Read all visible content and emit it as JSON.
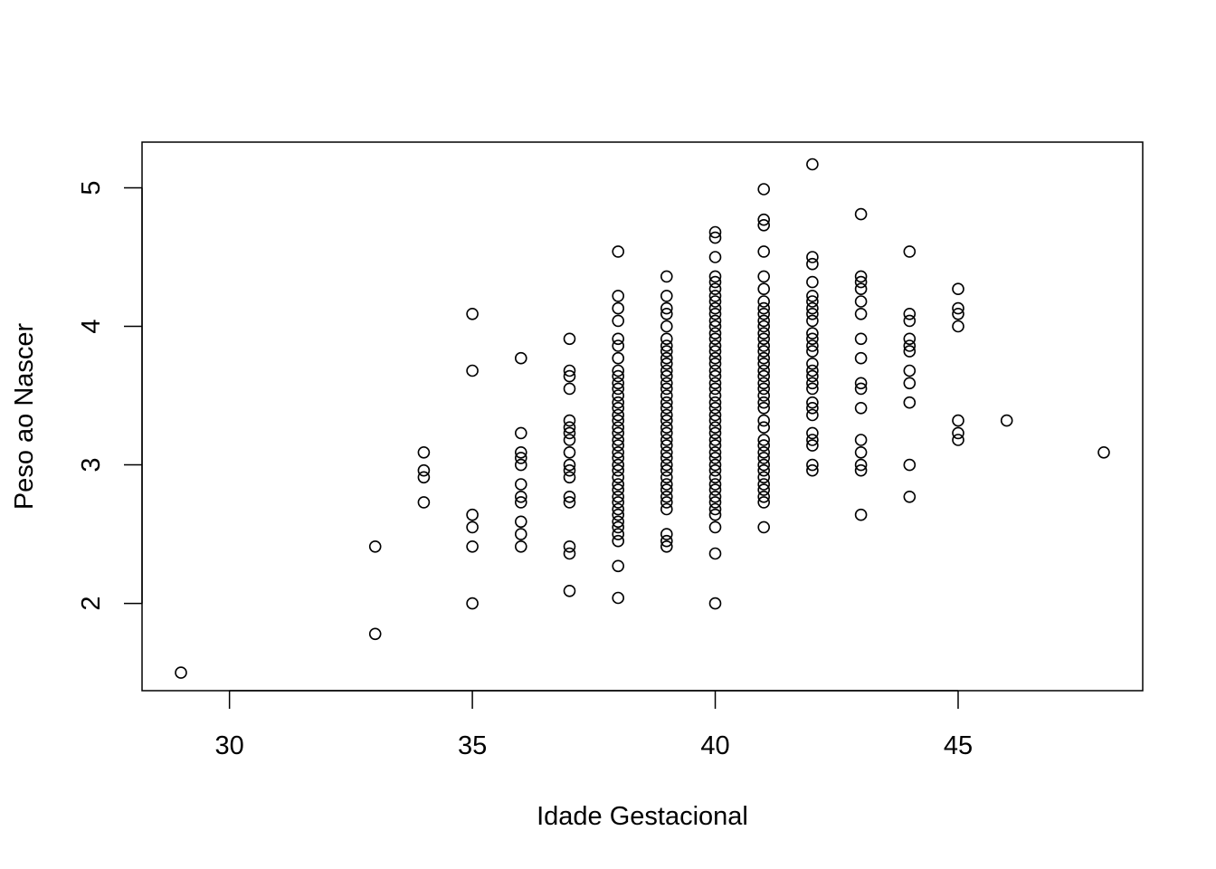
{
  "chart_data": {
    "type": "scatter",
    "title": "",
    "xlabel": "Idade Gestacional",
    "ylabel": "Peso ao Nascer",
    "xlim": [
      28.2,
      48.8
    ],
    "ylim": [
      1.37,
      5.33
    ],
    "x_ticks": [
      30,
      35,
      40,
      45
    ],
    "y_ticks": [
      2,
      3,
      4,
      5
    ],
    "x_tick_labels": [
      "30",
      "35",
      "40",
      "45"
    ],
    "y_tick_labels": [
      "2",
      "3",
      "4",
      "5"
    ],
    "grid": false,
    "legend": "none",
    "marker": "open-circle",
    "marker_color": "#000000",
    "series": [
      {
        "points": [
          [
            29,
            1.5
          ],
          [
            33,
            2.41
          ],
          [
            33,
            1.78
          ],
          [
            34,
            3.09
          ],
          [
            34,
            2.96
          ],
          [
            34,
            2.91
          ],
          [
            34,
            2.73
          ],
          [
            35,
            4.09
          ],
          [
            35,
            3.68
          ],
          [
            35,
            2.64
          ],
          [
            35,
            2.55
          ],
          [
            35,
            2.41
          ],
          [
            35,
            2.0
          ],
          [
            36,
            3.77
          ],
          [
            36,
            3.23
          ],
          [
            36,
            3.09
          ],
          [
            36,
            3.05
          ],
          [
            36,
            3.0
          ],
          [
            36,
            2.86
          ],
          [
            36,
            2.77
          ],
          [
            36,
            2.73
          ],
          [
            36,
            2.59
          ],
          [
            36,
            2.5
          ],
          [
            36,
            2.41
          ],
          [
            37,
            3.91
          ],
          [
            37,
            3.68
          ],
          [
            37,
            3.64
          ],
          [
            37,
            3.55
          ],
          [
            37,
            3.32
          ],
          [
            37,
            3.27
          ],
          [
            37,
            3.23
          ],
          [
            37,
            3.18
          ],
          [
            37,
            3.09
          ],
          [
            37,
            3.0
          ],
          [
            37,
            2.96
          ],
          [
            37,
            2.91
          ],
          [
            37,
            2.77
          ],
          [
            37,
            2.73
          ],
          [
            37,
            2.41
          ],
          [
            37,
            2.36
          ],
          [
            37,
            2.09
          ],
          [
            38,
            4.54
          ],
          [
            38,
            4.22
          ],
          [
            38,
            4.13
          ],
          [
            38,
            4.04
          ],
          [
            38,
            3.91
          ],
          [
            38,
            3.86
          ],
          [
            38,
            3.77
          ],
          [
            38,
            3.68
          ],
          [
            38,
            3.64
          ],
          [
            38,
            3.59
          ],
          [
            38,
            3.55
          ],
          [
            38,
            3.5
          ],
          [
            38,
            3.45
          ],
          [
            38,
            3.41
          ],
          [
            38,
            3.36
          ],
          [
            38,
            3.32
          ],
          [
            38,
            3.27
          ],
          [
            38,
            3.23
          ],
          [
            38,
            3.18
          ],
          [
            38,
            3.14
          ],
          [
            38,
            3.09
          ],
          [
            38,
            3.05
          ],
          [
            38,
            3.0
          ],
          [
            38,
            2.96
          ],
          [
            38,
            2.91
          ],
          [
            38,
            2.86
          ],
          [
            38,
            2.82
          ],
          [
            38,
            2.77
          ],
          [
            38,
            2.73
          ],
          [
            38,
            2.68
          ],
          [
            38,
            2.64
          ],
          [
            38,
            2.59
          ],
          [
            38,
            2.55
          ],
          [
            38,
            2.5
          ],
          [
            38,
            2.45
          ],
          [
            38,
            2.27
          ],
          [
            38,
            2.04
          ],
          [
            39,
            4.36
          ],
          [
            39,
            4.22
          ],
          [
            39,
            4.13
          ],
          [
            39,
            4.09
          ],
          [
            39,
            4.0
          ],
          [
            39,
            3.91
          ],
          [
            39,
            3.86
          ],
          [
            39,
            3.82
          ],
          [
            39,
            3.77
          ],
          [
            39,
            3.73
          ],
          [
            39,
            3.68
          ],
          [
            39,
            3.64
          ],
          [
            39,
            3.59
          ],
          [
            39,
            3.55
          ],
          [
            39,
            3.5
          ],
          [
            39,
            3.45
          ],
          [
            39,
            3.41
          ],
          [
            39,
            3.36
          ],
          [
            39,
            3.32
          ],
          [
            39,
            3.27
          ],
          [
            39,
            3.23
          ],
          [
            39,
            3.18
          ],
          [
            39,
            3.14
          ],
          [
            39,
            3.09
          ],
          [
            39,
            3.05
          ],
          [
            39,
            3.0
          ],
          [
            39,
            2.96
          ],
          [
            39,
            2.91
          ],
          [
            39,
            2.86
          ],
          [
            39,
            2.82
          ],
          [
            39,
            2.77
          ],
          [
            39,
            2.73
          ],
          [
            39,
            2.68
          ],
          [
            39,
            2.5
          ],
          [
            39,
            2.45
          ],
          [
            39,
            2.41
          ],
          [
            40,
            4.68
          ],
          [
            40,
            4.64
          ],
          [
            40,
            4.5
          ],
          [
            40,
            4.36
          ],
          [
            40,
            4.32
          ],
          [
            40,
            4.27
          ],
          [
            40,
            4.22
          ],
          [
            40,
            4.18
          ],
          [
            40,
            4.13
          ],
          [
            40,
            4.09
          ],
          [
            40,
            4.04
          ],
          [
            40,
            4.0
          ],
          [
            40,
            3.95
          ],
          [
            40,
            3.91
          ],
          [
            40,
            3.86
          ],
          [
            40,
            3.82
          ],
          [
            40,
            3.77
          ],
          [
            40,
            3.73
          ],
          [
            40,
            3.68
          ],
          [
            40,
            3.64
          ],
          [
            40,
            3.59
          ],
          [
            40,
            3.55
          ],
          [
            40,
            3.5
          ],
          [
            40,
            3.45
          ],
          [
            40,
            3.41
          ],
          [
            40,
            3.36
          ],
          [
            40,
            3.32
          ],
          [
            40,
            3.27
          ],
          [
            40,
            3.23
          ],
          [
            40,
            3.18
          ],
          [
            40,
            3.14
          ],
          [
            40,
            3.09
          ],
          [
            40,
            3.05
          ],
          [
            40,
            3.0
          ],
          [
            40,
            2.96
          ],
          [
            40,
            2.91
          ],
          [
            40,
            2.86
          ],
          [
            40,
            2.82
          ],
          [
            40,
            2.77
          ],
          [
            40,
            2.73
          ],
          [
            40,
            2.68
          ],
          [
            40,
            2.64
          ],
          [
            40,
            2.55
          ],
          [
            40,
            2.36
          ],
          [
            40,
            2.0
          ],
          [
            41,
            4.99
          ],
          [
            41,
            4.77
          ],
          [
            41,
            4.73
          ],
          [
            41,
            4.54
          ],
          [
            41,
            4.36
          ],
          [
            41,
            4.27
          ],
          [
            41,
            4.18
          ],
          [
            41,
            4.13
          ],
          [
            41,
            4.09
          ],
          [
            41,
            4.04
          ],
          [
            41,
            4.0
          ],
          [
            41,
            3.95
          ],
          [
            41,
            3.91
          ],
          [
            41,
            3.86
          ],
          [
            41,
            3.82
          ],
          [
            41,
            3.77
          ],
          [
            41,
            3.73
          ],
          [
            41,
            3.68
          ],
          [
            41,
            3.64
          ],
          [
            41,
            3.59
          ],
          [
            41,
            3.55
          ],
          [
            41,
            3.5
          ],
          [
            41,
            3.45
          ],
          [
            41,
            3.41
          ],
          [
            41,
            3.32
          ],
          [
            41,
            3.27
          ],
          [
            41,
            3.18
          ],
          [
            41,
            3.14
          ],
          [
            41,
            3.09
          ],
          [
            41,
            3.05
          ],
          [
            41,
            3.0
          ],
          [
            41,
            2.96
          ],
          [
            41,
            2.91
          ],
          [
            41,
            2.86
          ],
          [
            41,
            2.82
          ],
          [
            41,
            2.77
          ],
          [
            41,
            2.73
          ],
          [
            41,
            2.55
          ],
          [
            42,
            5.17
          ],
          [
            42,
            4.5
          ],
          [
            42,
            4.45
          ],
          [
            42,
            4.32
          ],
          [
            42,
            4.22
          ],
          [
            42,
            4.18
          ],
          [
            42,
            4.13
          ],
          [
            42,
            4.09
          ],
          [
            42,
            4.04
          ],
          [
            42,
            3.95
          ],
          [
            42,
            3.91
          ],
          [
            42,
            3.86
          ],
          [
            42,
            3.82
          ],
          [
            42,
            3.73
          ],
          [
            42,
            3.68
          ],
          [
            42,
            3.64
          ],
          [
            42,
            3.59
          ],
          [
            42,
            3.55
          ],
          [
            42,
            3.45
          ],
          [
            42,
            3.41
          ],
          [
            42,
            3.36
          ],
          [
            42,
            3.23
          ],
          [
            42,
            3.18
          ],
          [
            42,
            3.14
          ],
          [
            42,
            3.0
          ],
          [
            42,
            2.96
          ],
          [
            43,
            4.81
          ],
          [
            43,
            4.36
          ],
          [
            43,
            4.32
          ],
          [
            43,
            4.27
          ],
          [
            43,
            4.18
          ],
          [
            43,
            4.09
          ],
          [
            43,
            3.91
          ],
          [
            43,
            3.77
          ],
          [
            43,
            3.59
          ],
          [
            43,
            3.55
          ],
          [
            43,
            3.41
          ],
          [
            43,
            3.18
          ],
          [
            43,
            3.09
          ],
          [
            43,
            3.0
          ],
          [
            43,
            2.96
          ],
          [
            43,
            2.64
          ],
          [
            44,
            4.54
          ],
          [
            44,
            4.09
          ],
          [
            44,
            4.04
          ],
          [
            44,
            3.91
          ],
          [
            44,
            3.86
          ],
          [
            44,
            3.82
          ],
          [
            44,
            3.68
          ],
          [
            44,
            3.59
          ],
          [
            44,
            3.45
          ],
          [
            44,
            3.0
          ],
          [
            44,
            2.77
          ],
          [
            45,
            4.27
          ],
          [
            45,
            4.13
          ],
          [
            45,
            4.09
          ],
          [
            45,
            4.0
          ],
          [
            45,
            3.32
          ],
          [
            45,
            3.23
          ],
          [
            45,
            3.18
          ],
          [
            46,
            3.32
          ],
          [
            48,
            3.09
          ]
        ]
      }
    ]
  }
}
